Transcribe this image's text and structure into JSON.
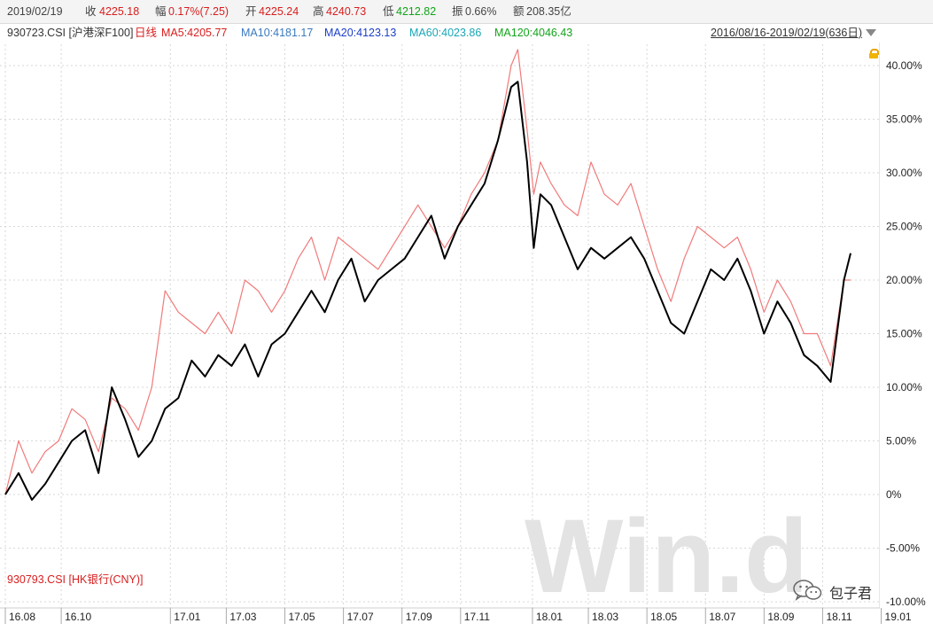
{
  "header": {
    "date": "2019/02/19",
    "close_label": "收",
    "close_value": "4225.18",
    "change_label": "幅",
    "change_value": "0.17%(7.25)",
    "open_label": "开",
    "open_value": "4225.24",
    "high_label": "高",
    "high_value": "4240.73",
    "low_label": "低",
    "low_value": "4212.82",
    "amp_label": "振",
    "amp_value": "0.66%",
    "amount_label": "额",
    "amount_value": "208.35亿"
  },
  "subheader": {
    "code": "930723.CSI [沪港深F100]",
    "period_type": "日线",
    "ma5": "MA5:4205.77",
    "ma10": "MA10:4181.17",
    "ma20": "MA20:4123.13",
    "ma60": "MA60:4023.86",
    "ma120": "MA120:4046.43",
    "range": "2016/08/16-2019/02/19(636日)",
    "dropdown_icon": "triangle-down-icon",
    "lock_icon": "lock-icon"
  },
  "compare_label": "930793.CSI [HK银行(CNY)]",
  "watermark": {
    "text": "Win.d"
  },
  "wechat": {
    "icon": "wechat-icon",
    "label": "包子君"
  },
  "colors": {
    "primary_series": "#000000",
    "compare_series": "#f07a7a",
    "ma5": "#d81e1e",
    "ma10": "#3a7abf",
    "ma20": "#1a3ec8",
    "ma60": "#1aa6b7",
    "ma120": "#13a41a",
    "grid": "#d7d7d7",
    "watermark": "#e3e3e3"
  },
  "chart_data": {
    "type": "line",
    "title": "",
    "xlabel": "",
    "ylabel": "",
    "ylim": [
      -10,
      44
    ],
    "y_ticks": [
      "40.00%",
      "35.00%",
      "30.00%",
      "25.00%",
      "20.00%",
      "15.00%",
      "10.00%",
      "5.00%",
      "0%",
      "-5.00%",
      "-10.00%"
    ],
    "y_tick_values": [
      40,
      35,
      30,
      25,
      20,
      15,
      10,
      5,
      0,
      -5,
      -10
    ],
    "x_ticks": [
      "16.08",
      "16.10",
      "17.01",
      "17.03",
      "17.05",
      "17.07",
      "17.09",
      "17.11",
      "18.01",
      "18.03",
      "18.05",
      "18.07",
      "18.09",
      "18.11",
      "19.01"
    ],
    "x_tick_index": [
      0,
      42,
      124,
      166,
      210,
      254,
      298,
      342,
      396,
      438,
      482,
      526,
      570,
      614,
      658
    ],
    "grid": true,
    "total_points": 636,
    "series": [
      {
        "name": "930723.CSI [沪港深F100]",
        "x": [
          0,
          10,
          20,
          30,
          40,
          50,
          60,
          70,
          80,
          90,
          100,
          110,
          120,
          130,
          140,
          150,
          160,
          170,
          180,
          190,
          200,
          210,
          220,
          230,
          240,
          250,
          260,
          270,
          280,
          290,
          300,
          310,
          320,
          330,
          340,
          350,
          360,
          370,
          380,
          385,
          392,
          397,
          402,
          410,
          420,
          430,
          440,
          450,
          460,
          470,
          480,
          490,
          500,
          510,
          520,
          530,
          540,
          550,
          560,
          570,
          580,
          590,
          600,
          610,
          620,
          630,
          635
        ],
        "values": [
          0,
          2,
          -0.5,
          1,
          3,
          5,
          6,
          2,
          10,
          7,
          3.5,
          5,
          8,
          9,
          12.5,
          11,
          13,
          12,
          14,
          11,
          14,
          15,
          17,
          19,
          17,
          20,
          22,
          18,
          20,
          21,
          22,
          24,
          26,
          22,
          25,
          27,
          29,
          33,
          38,
          38.5,
          31,
          23,
          28,
          27,
          24,
          21,
          23,
          22,
          23,
          24,
          22,
          19,
          16,
          15,
          18,
          21,
          20,
          22,
          19,
          15,
          18,
          16,
          13,
          12,
          10.5,
          20,
          22.5
        ]
      },
      {
        "name": "930793.CSI [HK银行(CNY)]",
        "x": [
          0,
          10,
          20,
          30,
          40,
          50,
          60,
          70,
          80,
          90,
          100,
          110,
          120,
          130,
          140,
          150,
          160,
          170,
          180,
          190,
          200,
          210,
          220,
          230,
          240,
          250,
          260,
          270,
          280,
          290,
          300,
          310,
          320,
          330,
          340,
          350,
          360,
          370,
          380,
          385,
          392,
          397,
          402,
          410,
          420,
          430,
          440,
          450,
          460,
          470,
          480,
          490,
          500,
          510,
          520,
          530,
          540,
          550,
          560,
          570,
          580,
          590,
          600,
          610,
          620,
          630,
          635
        ],
        "values": [
          0,
          5,
          2,
          4,
          5,
          8,
          7,
          4,
          9,
          8,
          6,
          10,
          19,
          17,
          16,
          15,
          17,
          15,
          20,
          19,
          17,
          19,
          22,
          24,
          20,
          24,
          23,
          22,
          21,
          23,
          25,
          27,
          25,
          23,
          25,
          28,
          30,
          33,
          40,
          41.5,
          34,
          28,
          31,
          29,
          27,
          26,
          31,
          28,
          27,
          29,
          25,
          21,
          18,
          22,
          25,
          24,
          23,
          24,
          21,
          17,
          20,
          18,
          15,
          15,
          12,
          20,
          20
        ]
      }
    ]
  }
}
